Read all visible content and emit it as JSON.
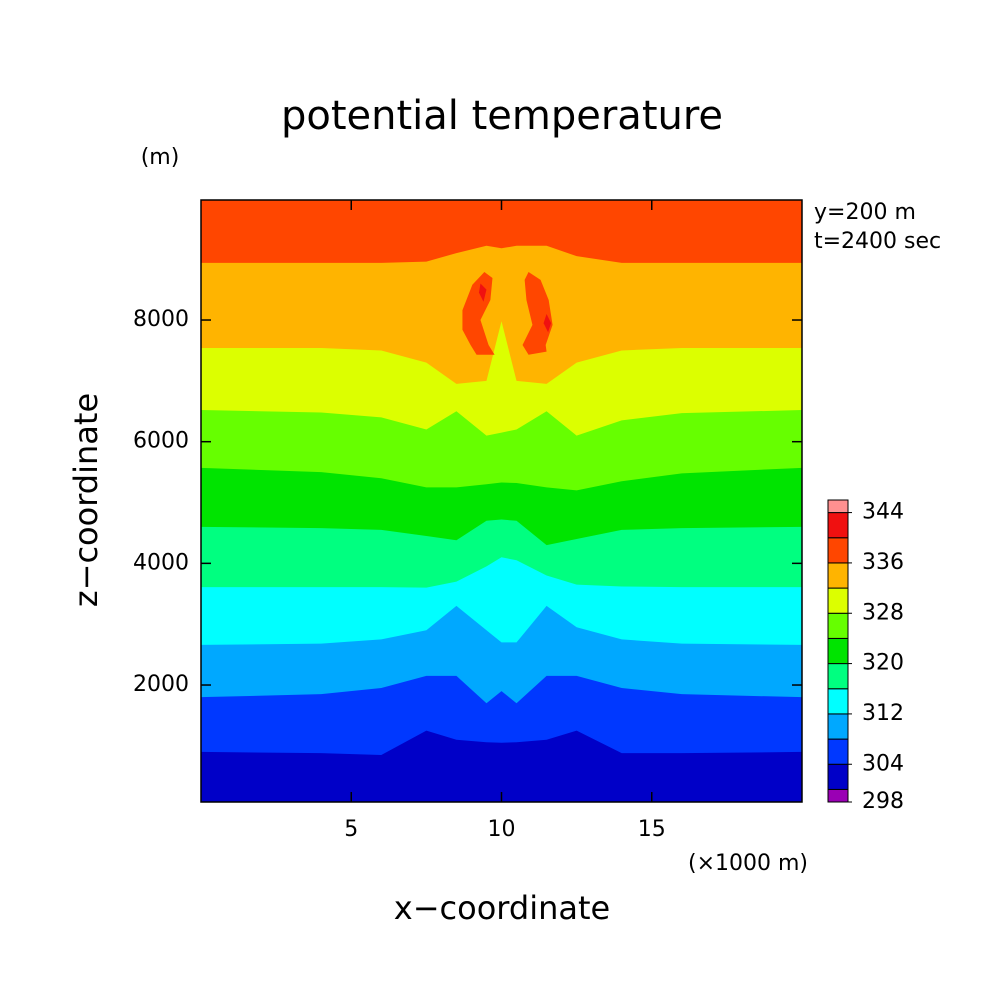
{
  "chart_data": {
    "type": "contour",
    "title": "potential temperature",
    "y_unit": "(m)",
    "x_unit": "(×1000 m)",
    "annotations": [
      "y=200 m",
      "t=2400 sec"
    ],
    "x_label": "x−coordinate",
    "y_label": "z−coordinate",
    "xlim": [
      0,
      20
    ],
    "ylim": [
      77,
      9973
    ],
    "xticks": [
      5,
      10,
      15
    ],
    "yticks": [
      2000,
      4000,
      6000,
      8000
    ],
    "levels": [
      298,
      300,
      304,
      308,
      312,
      316,
      320,
      324,
      328,
      332,
      336,
      340,
      344
    ],
    "colors": [
      "#9a00b4",
      "#0000c8",
      "#0038ff",
      "#00a8ff",
      "#00ffff",
      "#00ff80",
      "#00e400",
      "#66ff00",
      "#dcff00",
      "#ffb400",
      "#ff4600",
      "#f01010",
      "#ff9090"
    ],
    "colorbar_lim": [
      298,
      346
    ],
    "colorbar_ticks": [
      298,
      304,
      312,
      320,
      328,
      336,
      344
    ],
    "x": [
      0,
      4,
      6,
      7.5,
      8.5,
      9.5,
      10,
      10.5,
      11.5,
      12.5,
      14,
      16,
      20
    ],
    "contours": [
      {
        "level": 304,
        "z": [
          900,
          880,
          850,
          1250,
          1100,
          1060,
          1050,
          1060,
          1100,
          1250,
          880,
          880,
          900
        ]
      },
      {
        "level": 308,
        "z": [
          1800,
          1850,
          1950,
          2150,
          2150,
          1700,
          1900,
          1700,
          2150,
          2150,
          1950,
          1850,
          1800
        ]
      },
      {
        "level": 312,
        "z": [
          2660,
          2680,
          2750,
          2900,
          3300,
          2900,
          2700,
          2700,
          3300,
          2950,
          2750,
          2680,
          2660
        ]
      },
      {
        "level": 316,
        "z": [
          3610,
          3610,
          3610,
          3600,
          3700,
          3950,
          4100,
          4050,
          3800,
          3650,
          3620,
          3610,
          3610
        ]
      },
      {
        "level": 320,
        "z": [
          4600,
          4580,
          4550,
          4450,
          4380,
          4700,
          4720,
          4700,
          4300,
          4400,
          4550,
          4580,
          4600
        ]
      },
      {
        "level": 324,
        "z": [
          5570,
          5500,
          5400,
          5250,
          5250,
          5300,
          5330,
          5320,
          5250,
          5200,
          5350,
          5480,
          5570
        ]
      },
      {
        "level": 328,
        "z": [
          6520,
          6480,
          6400,
          6200,
          6500,
          6100,
          6150,
          6200,
          6500,
          6100,
          6350,
          6470,
          6520
        ]
      },
      {
        "level": 332,
        "z": [
          7540,
          7540,
          7500,
          7300,
          6950,
          7000,
          7980,
          7000,
          6950,
          7300,
          7500,
          7540,
          7540
        ]
      },
      {
        "level": 336,
        "z": [
          8940,
          8940,
          8940,
          8960,
          9100,
          9220,
          9180,
          9220,
          9220,
          9050,
          8940,
          8940,
          8940
        ]
      }
    ],
    "cells": [
      {
        "level": 336,
        "x": [
          9.43,
          9.7,
          9.63,
          9.3,
          9.57,
          9.77,
          9.17,
          8.97,
          8.7,
          8.7,
          9.03
        ],
        "z": [
          8790,
          8690,
          8330,
          8000,
          7590,
          7430,
          7430,
          7590,
          7840,
          8160,
          8580
        ]
      },
      {
        "level": 336,
        "x": [
          10.9,
          11.3,
          11.57,
          11.7,
          11.47,
          11.5,
          10.9,
          10.7,
          11.03,
          10.83,
          10.77
        ],
        "z": [
          8790,
          8660,
          8330,
          7920,
          7590,
          7480,
          7430,
          7590,
          7920,
          8330,
          8660
        ]
      },
      {
        "level": 340,
        "x": [
          9.3,
          9.5,
          9.4,
          9.25
        ],
        "z": [
          8600,
          8500,
          8300,
          8450
        ]
      },
      {
        "level": 340,
        "x": [
          11.5,
          11.65,
          11.55,
          11.4
        ],
        "z": [
          8100,
          7950,
          7800,
          7950
        ]
      }
    ]
  }
}
